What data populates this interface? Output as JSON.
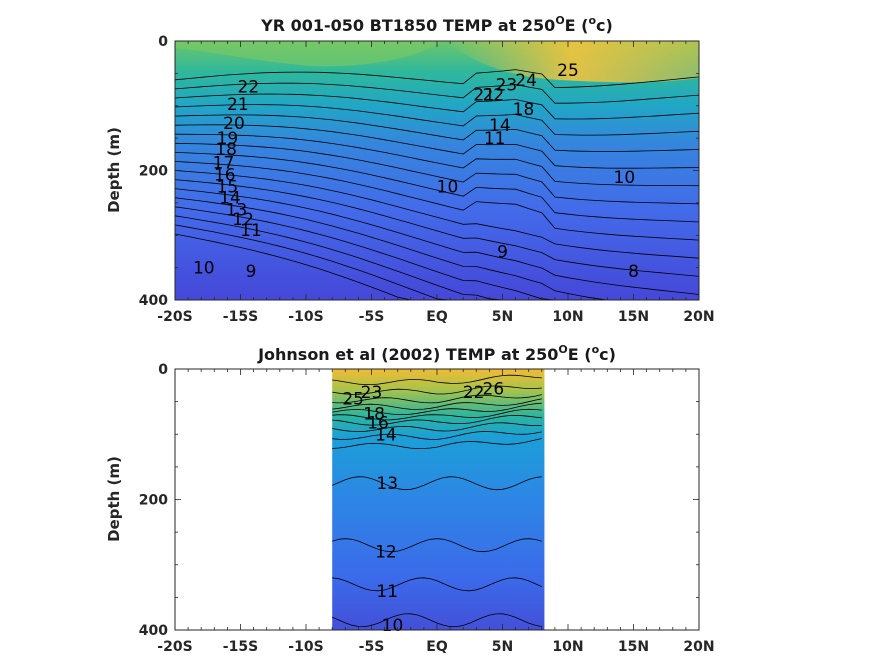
{
  "chart_data": [
    {
      "type": "heatmap",
      "subtype": "filled-contour",
      "title_main": "YR 001-050 BT1850 TEMP at 250",
      "title_sup": "O",
      "title_end": "E (",
      "title_unit_sup": "o",
      "title_unit_end": "c)",
      "ylabel": "Depth (m)",
      "xlim": [
        -20,
        20
      ],
      "ylim": [
        400,
        0
      ],
      "xticks": [
        -20,
        -15,
        -10,
        -5,
        0,
        5,
        10,
        15,
        20
      ],
      "xticklabels": [
        "-20S",
        "-15S",
        "-10S",
        "-5S",
        "EQ",
        "5N",
        "10N",
        "15N",
        "20N"
      ],
      "yticks": [
        0,
        200,
        400
      ],
      "yticklabels": [
        "0",
        "200",
        "400"
      ],
      "data_lon_range": [
        -20,
        20
      ],
      "contour_labels": [
        {
          "text": "22",
          "lat": -14.4,
          "depth": 70
        },
        {
          "text": "21",
          "lat": -15.2,
          "depth": 97
        },
        {
          "text": "20",
          "lat": -15.5,
          "depth": 127
        },
        {
          "text": "19",
          "lat": -16.0,
          "depth": 150
        },
        {
          "text": "18",
          "lat": -16.1,
          "depth": 167
        },
        {
          "text": "17",
          "lat": -16.3,
          "depth": 188
        },
        {
          "text": "16",
          "lat": -16.2,
          "depth": 206
        },
        {
          "text": "15",
          "lat": -16.0,
          "depth": 225
        },
        {
          "text": "14",
          "lat": -15.8,
          "depth": 242
        },
        {
          "text": "13",
          "lat": -15.3,
          "depth": 260
        },
        {
          "text": "12",
          "lat": -14.8,
          "depth": 275
        },
        {
          "text": "11",
          "lat": -14.2,
          "depth": 292
        },
        {
          "text": "10",
          "lat": -17.8,
          "depth": 350
        },
        {
          "text": "9",
          "lat": -14.2,
          "depth": 355
        },
        {
          "text": "10",
          "lat": 0.8,
          "depth": 225
        },
        {
          "text": "10",
          "lat": 14.3,
          "depth": 210
        },
        {
          "text": "9",
          "lat": 5.0,
          "depth": 325
        },
        {
          "text": "8",
          "lat": 15.0,
          "depth": 355
        },
        {
          "text": "11",
          "lat": 4.4,
          "depth": 150
        },
        {
          "text": "25",
          "lat": 10.0,
          "depth": 45
        },
        {
          "text": "24",
          "lat": 6.8,
          "depth": 60
        },
        {
          "text": "23",
          "lat": 5.3,
          "depth": 67
        },
        {
          "text": "22",
          "lat": 4.3,
          "depth": 83
        },
        {
          "text": "21",
          "lat": 3.6,
          "depth": 83
        },
        {
          "text": "14",
          "lat": 4.8,
          "depth": 130
        },
        {
          "text": "18",
          "lat": 6.6,
          "depth": 105
        }
      ]
    },
    {
      "type": "heatmap",
      "subtype": "filled-contour",
      "title_main": "Johnson et al (2002) TEMP at 250",
      "title_sup": "O",
      "title_end": "E (",
      "title_unit_sup": "o",
      "title_unit_end": "c)",
      "ylabel": "Depth (m)",
      "xlim": [
        -20,
        20
      ],
      "ylim": [
        400,
        0
      ],
      "xticks": [
        -20,
        -15,
        -10,
        -5,
        0,
        5,
        10,
        15,
        20
      ],
      "xticklabels": [
        "-20S",
        "-15S",
        "-10S",
        "-5S",
        "EQ",
        "5N",
        "10N",
        "15N",
        "20N"
      ],
      "yticks": [
        0,
        200,
        400
      ],
      "yticklabels": [
        "0",
        "200",
        "400"
      ],
      "data_lon_range": [
        -8,
        8.2
      ],
      "contour_labels": [
        {
          "text": "25",
          "lat": -6.4,
          "depth": 45
        },
        {
          "text": "23",
          "lat": -5.0,
          "depth": 35
        },
        {
          "text": "22",
          "lat": 2.8,
          "depth": 35
        },
        {
          "text": "26",
          "lat": 4.3,
          "depth": 30
        },
        {
          "text": "18",
          "lat": -4.8,
          "depth": 68
        },
        {
          "text": "16",
          "lat": -4.5,
          "depth": 82
        },
        {
          "text": "14",
          "lat": -3.9,
          "depth": 100
        },
        {
          "text": "13",
          "lat": -3.8,
          "depth": 175
        },
        {
          "text": "12",
          "lat": -3.9,
          "depth": 280
        },
        {
          "text": "11",
          "lat": -3.8,
          "depth": 340
        },
        {
          "text": "10",
          "lat": -3.4,
          "depth": 392
        }
      ]
    }
  ]
}
